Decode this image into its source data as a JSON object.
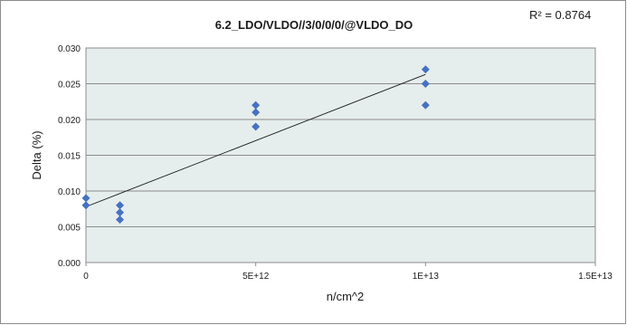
{
  "chart_data": {
    "type": "scatter",
    "title": "6.2_LDO/VLDO//3/0/0/0/@VLDO_DO",
    "annotation": "R² = 0.8764",
    "xlabel": "n/cm^2",
    "ylabel": "Delta (%)",
    "xlim": [
      0,
      15000000000000
    ],
    "ylim": [
      0,
      0.03
    ],
    "x_ticks": [
      "0",
      "5E+12",
      "1E+13",
      "1.5E+13"
    ],
    "y_ticks": [
      "0.000",
      "0.005",
      "0.010",
      "0.015",
      "0.020",
      "0.025",
      "0.030"
    ],
    "grid": true,
    "legend": "none",
    "plot_background": "#e6eded",
    "marker_color": "#4472c4",
    "trendline": {
      "type": "linear",
      "x": [
        0,
        10000000000000
      ],
      "y": [
        0.0078,
        0.0263
      ]
    },
    "series": [
      {
        "x": [
          0,
          0,
          1000000000000,
          1000000000000,
          1000000000000,
          5000000000000,
          5000000000000,
          5000000000000,
          10000000000000,
          10000000000000,
          10000000000000
        ],
        "y": [
          0.009,
          0.008,
          0.008,
          0.007,
          0.006,
          0.022,
          0.021,
          0.019,
          0.027,
          0.025,
          0.022
        ]
      }
    ]
  }
}
